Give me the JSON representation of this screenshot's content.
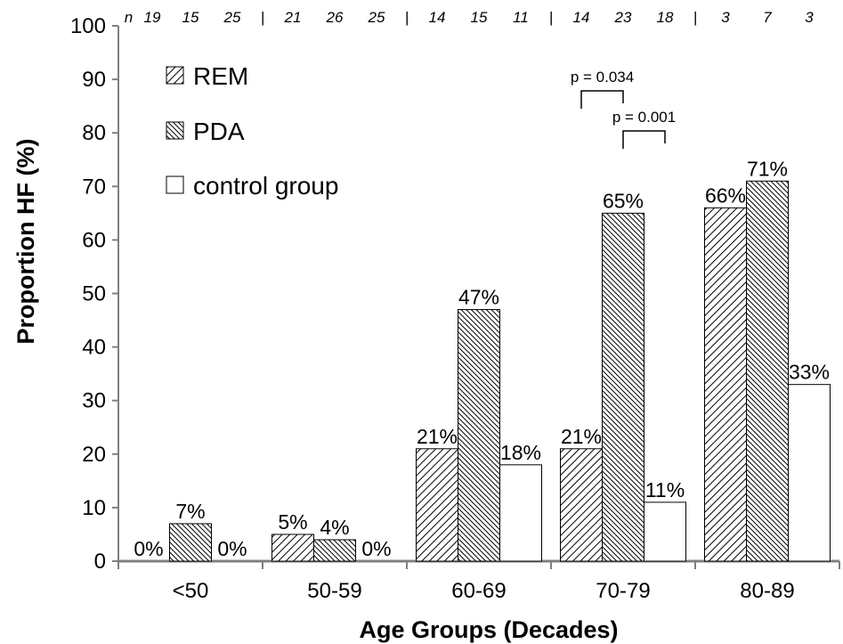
{
  "chart_data": {
    "type": "bar",
    "categories": [
      "<50",
      "50-59",
      "60-69",
      "70-79",
      "80-89"
    ],
    "series": [
      {
        "name": "REM",
        "values": [
          0,
          5,
          21,
          21,
          66
        ],
        "labels": [
          "0%",
          "5%",
          "21%",
          "21%",
          "66%"
        ],
        "pattern": "diag-thin"
      },
      {
        "name": "PDA",
        "values": [
          7,
          4,
          47,
          65,
          71
        ],
        "labels": [
          "7%",
          "4%",
          "47%",
          "65%",
          "71%"
        ],
        "pattern": "diag-dense"
      },
      {
        "name": "control group",
        "values": [
          0,
          0,
          18,
          11,
          33
        ],
        "labels": [
          "0%",
          "0%",
          "18%",
          "11%",
          "33%"
        ],
        "pattern": "empty"
      }
    ],
    "title": "",
    "xlabel": "Age Groups (Decades)",
    "ylabel": "Proportion HF (%)",
    "ylim": [
      0,
      100
    ],
    "yticks": [
      0,
      10,
      20,
      30,
      40,
      50,
      60,
      70,
      80,
      90,
      100
    ],
    "grid": false,
    "legend_position": "top-left",
    "n_prefix": "n",
    "n_counts": [
      [
        "19",
        "15",
        "25"
      ],
      [
        "21",
        "26",
        "25"
      ],
      [
        "14",
        "15",
        "11"
      ],
      [
        "14",
        "23",
        "18"
      ],
      [
        "3",
        "7",
        "3"
      ]
    ],
    "n_separator": "|",
    "significance": [
      {
        "label": "p = 0.034",
        "category": "70-79",
        "series_from": "REM",
        "series_to": "PDA"
      },
      {
        "label": "p = 0.001",
        "category": "70-79",
        "series_from": "PDA",
        "series_to": "control group"
      }
    ]
  },
  "colors": {
    "bar_stroke": "#000000",
    "axis": "#808080",
    "fill_empty": "#ffffff"
  }
}
